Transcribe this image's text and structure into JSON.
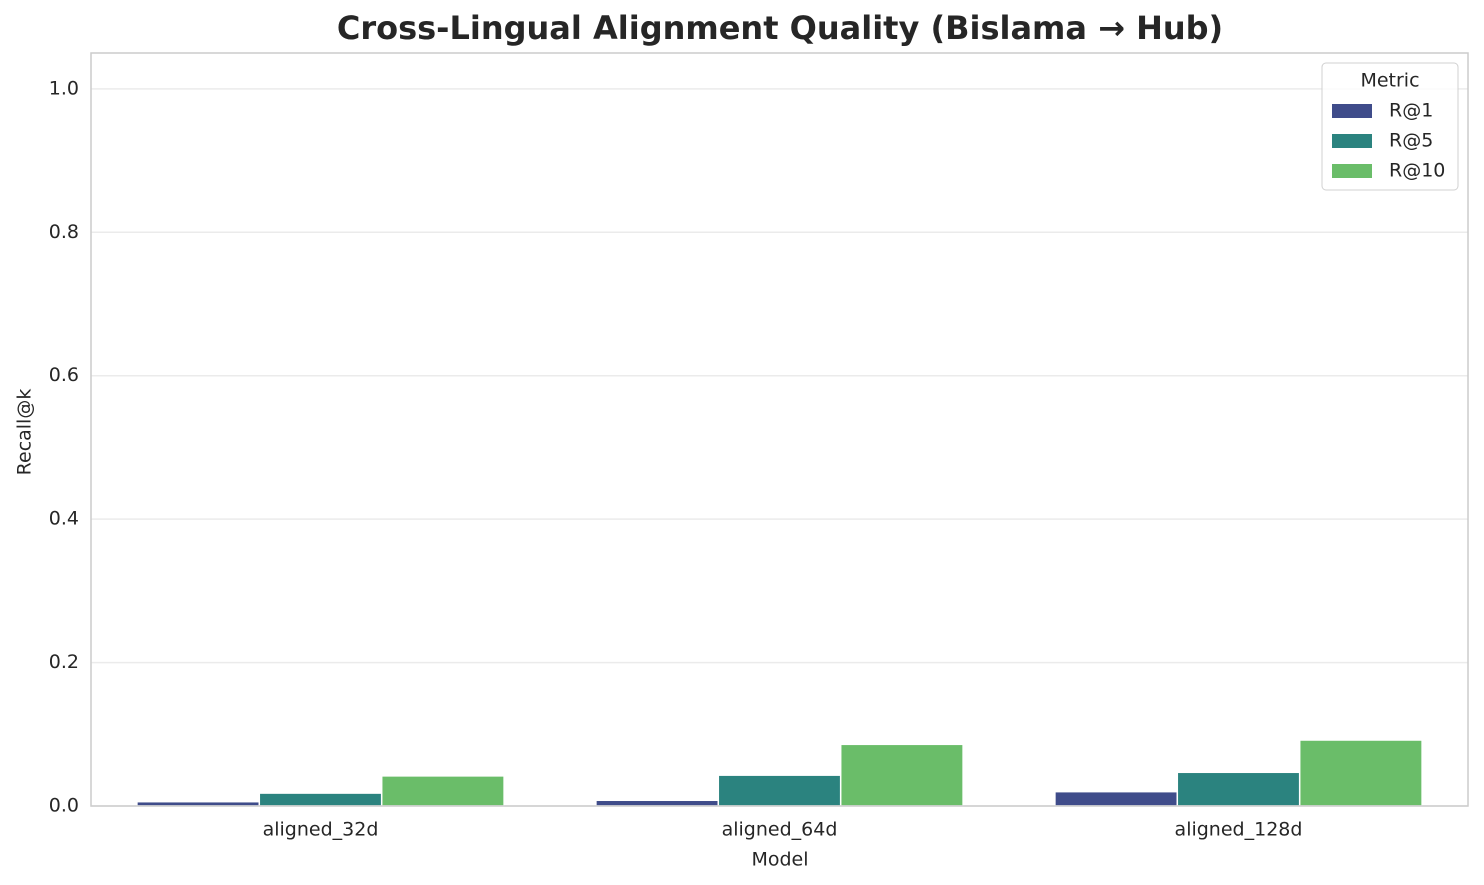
{
  "chart_data": {
    "type": "bar",
    "title": "Cross-Lingual Alignment Quality (Bislama → Hub)",
    "x_label": "Model",
    "y_label": "Recall@k",
    "categories": [
      "aligned_32d",
      "aligned_64d",
      "aligned_128d"
    ],
    "series": [
      {
        "name": "R@1",
        "color": "#3f4c8a",
        "values": [
          0.006,
          0.008,
          0.02
        ]
      },
      {
        "name": "R@5",
        "color": "#2b837f",
        "values": [
          0.018,
          0.043,
          0.047
        ]
      },
      {
        "name": "R@10",
        "color": "#6abd69",
        "values": [
          0.042,
          0.086,
          0.092
        ]
      }
    ],
    "legend_title": "Metric",
    "legend_position": "upper right",
    "ylim": [
      0,
      1.05
    ],
    "yticks": [
      {
        "value": 0,
        "label": "0.0"
      },
      0.2,
      0.4,
      0.6,
      0.8,
      {
        "value": 1,
        "label": "1.0"
      }
    ],
    "grid": true
  }
}
